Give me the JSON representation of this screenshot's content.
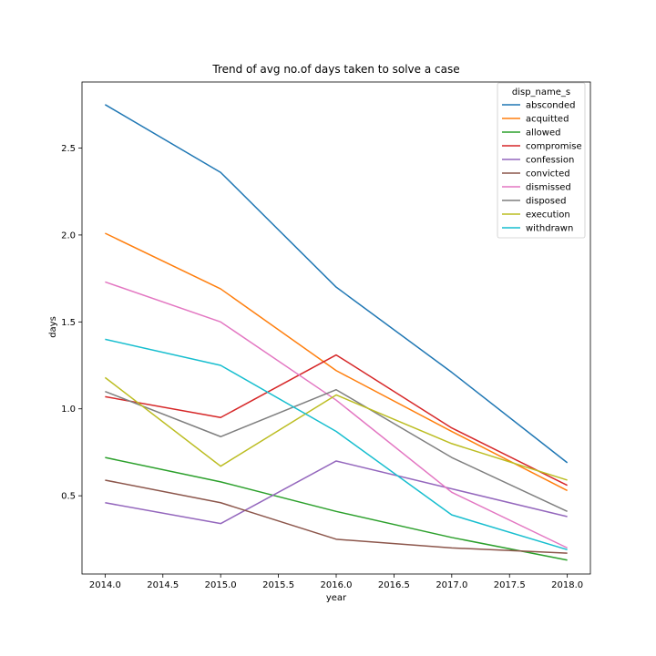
{
  "chart_data": {
    "type": "line",
    "title": "Trend of avg no.of days taken to solve a case",
    "xlabel": "year",
    "ylabel": "days",
    "x": [
      2014,
      2015,
      2016,
      2017,
      2018
    ],
    "xlim": [
      2013.8,
      2018.2
    ],
    "ylim": [
      0.05,
      2.88
    ],
    "xticks": [
      2014.0,
      2014.5,
      2015.0,
      2015.5,
      2016.0,
      2016.5,
      2017.0,
      2017.5,
      2018.0
    ],
    "xtick_labels": [
      "2014.0",
      "2014.5",
      "2015.0",
      "2015.5",
      "2016.0",
      "2016.5",
      "2017.0",
      "2017.5",
      "2018.0"
    ],
    "yticks": [
      0.5,
      1.0,
      1.5,
      2.0,
      2.5
    ],
    "ytick_labels": [
      "0.5",
      "1.0",
      "1.5",
      "2.0",
      "2.5"
    ],
    "grid": false,
    "legend": {
      "title": "disp_name_s",
      "placement": "top-right"
    },
    "series": [
      {
        "name": "absconded",
        "color": "#1f77b4",
        "values": [
          2.75,
          2.36,
          1.7,
          1.21,
          0.69
        ]
      },
      {
        "name": "acquitted",
        "color": "#ff7f0e",
        "values": [
          2.01,
          1.69,
          1.22,
          0.87,
          0.53
        ]
      },
      {
        "name": "allowed",
        "color": "#2ca02c",
        "values": [
          0.72,
          0.58,
          0.41,
          0.26,
          0.13
        ]
      },
      {
        "name": "compromise",
        "color": "#d62728",
        "values": [
          1.07,
          0.95,
          1.31,
          0.89,
          0.56
        ]
      },
      {
        "name": "confession",
        "color": "#9467bd",
        "values": [
          0.46,
          0.34,
          0.7,
          0.54,
          0.38
        ]
      },
      {
        "name": "convicted",
        "color": "#8c564b",
        "values": [
          0.59,
          0.46,
          0.25,
          0.2,
          0.17
        ]
      },
      {
        "name": "dismissed",
        "color": "#e377c2",
        "values": [
          1.73,
          1.5,
          1.05,
          0.52,
          0.2
        ]
      },
      {
        "name": "disposed",
        "color": "#7f7f7f",
        "values": [
          1.1,
          0.84,
          1.11,
          0.72,
          0.41
        ]
      },
      {
        "name": "execution",
        "color": "#bcbd22",
        "values": [
          1.18,
          0.67,
          1.08,
          0.8,
          0.59
        ]
      },
      {
        "name": "withdrawn",
        "color": "#17becf",
        "values": [
          1.4,
          1.25,
          0.87,
          0.39,
          0.19
        ]
      }
    ]
  }
}
